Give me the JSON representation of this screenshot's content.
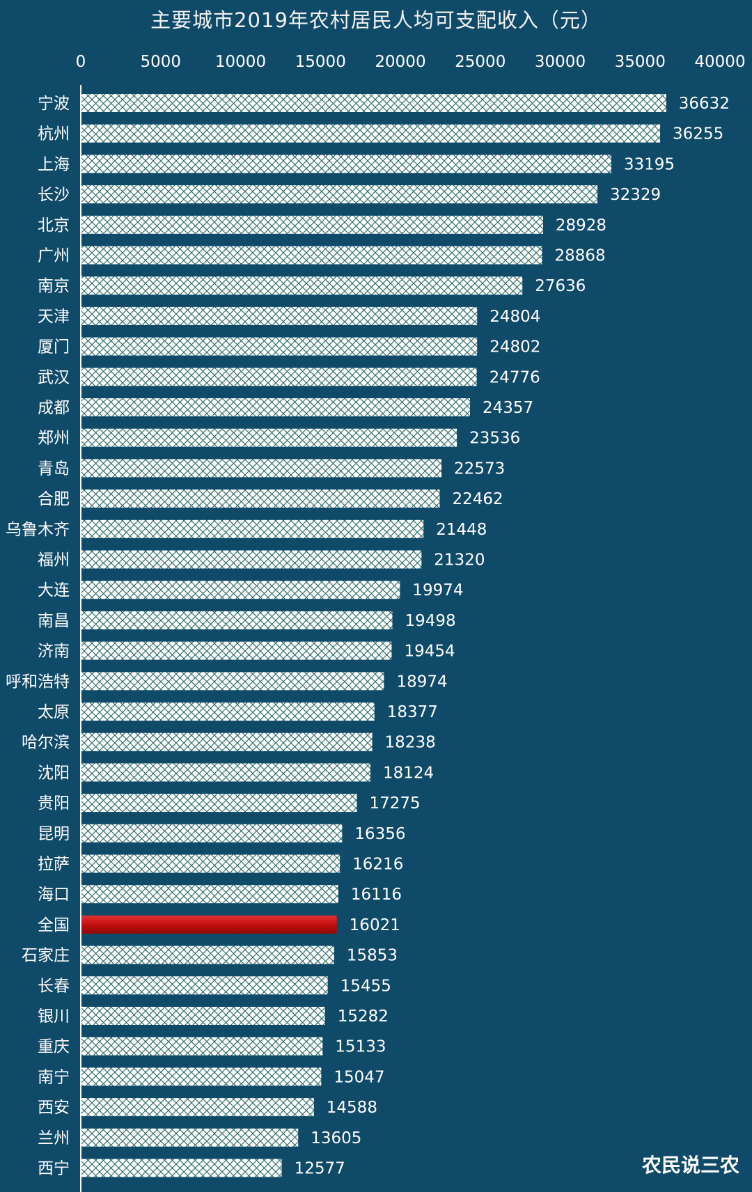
{
  "chart_data": {
    "type": "bar",
    "orientation": "horizontal",
    "title": "主要城市2019年农村居民人均可支配收入（元）",
    "xlim": [
      0,
      40000
    ],
    "x_ticks": [
      "0",
      "5000",
      "10000",
      "15000",
      "20000",
      "25000",
      "30000",
      "35000",
      "40000"
    ],
    "categories": [
      "宁波",
      "杭州",
      "上海",
      "长沙",
      "北京",
      "广州",
      "南京",
      "天津",
      "厦门",
      "武汉",
      "成都",
      "郑州",
      "青岛",
      "合肥",
      "乌鲁木齐",
      "福州",
      "大连",
      "南昌",
      "济南",
      "呼和浩特",
      "太原",
      "哈尔滨",
      "沈阳",
      "贵阳",
      "昆明",
      "拉萨",
      "海口",
      "全国",
      "石家庄",
      "长春",
      "银川",
      "重庆",
      "南宁",
      "西安",
      "兰州",
      "西宁"
    ],
    "values": [
      36632,
      36255,
      33195,
      32329,
      28928,
      28868,
      27636,
      24804,
      24802,
      24776,
      24357,
      23536,
      22573,
      22462,
      21448,
      21320,
      19974,
      19498,
      19454,
      18974,
      18377,
      18238,
      18124,
      17275,
      16356,
      16216,
      16116,
      16021,
      15853,
      15455,
      15282,
      15133,
      15047,
      14588,
      13605,
      12577
    ],
    "value_labels": [
      "36632",
      "36255",
      "33195",
      "32329",
      "28928",
      "28868",
      "27636",
      "24804",
      "24802",
      "24776",
      "24357",
      "23536",
      "22573",
      "22462",
      "21448",
      "21320",
      "19974",
      "19498",
      "19454",
      "18974",
      "18377",
      "18238",
      "18124",
      "17275",
      "16356",
      "16216",
      "16116",
      "16021",
      "15853",
      "15455",
      "15282",
      "15133",
      "15047",
      "14588",
      "13605",
      "12577"
    ],
    "highlight_category": "全国",
    "colors": {
      "background": "#0f4a69",
      "bar_fill": "#ffffff",
      "bar_pattern": "#2f6f6a",
      "highlight_bar": "#c41010",
      "text": "#ffffff",
      "axis": "#ffffff"
    },
    "grid": false
  },
  "watermark": "农民说三农"
}
